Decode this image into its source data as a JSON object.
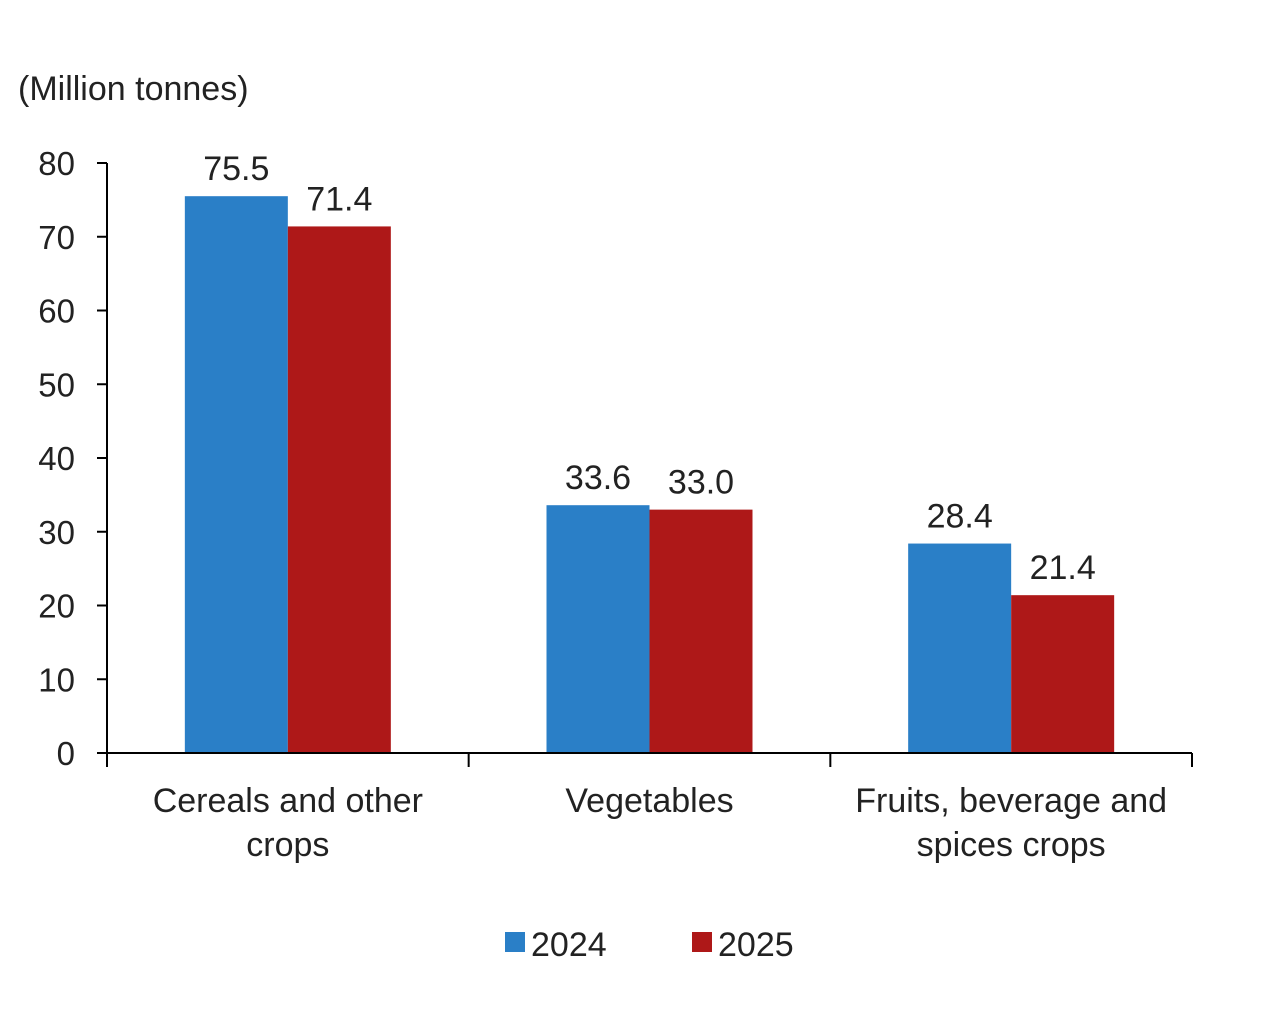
{
  "chart_data": {
    "type": "bar",
    "ylabel": "(Million tonnes)",
    "ylim": [
      0,
      80
    ],
    "yticks": [
      0,
      10,
      20,
      30,
      40,
      50,
      60,
      70,
      80
    ],
    "categories": [
      [
        "Cereals and other",
        "crops"
      ],
      [
        "Vegetables"
      ],
      [
        "Fruits, beverage and",
        "spices crops"
      ]
    ],
    "series": [
      {
        "name": "2024",
        "color": "#2a7fc7",
        "values": [
          75.5,
          33.6,
          28.4
        ],
        "labels": [
          "75.5",
          "33.6",
          "28.4"
        ]
      },
      {
        "name": "2025",
        "color": "#ae1818",
        "values": [
          71.4,
          33.0,
          21.4
        ],
        "labels": [
          "71.4",
          "33.0",
          "21.4"
        ]
      }
    ],
    "legend_position": "bottom-center"
  }
}
